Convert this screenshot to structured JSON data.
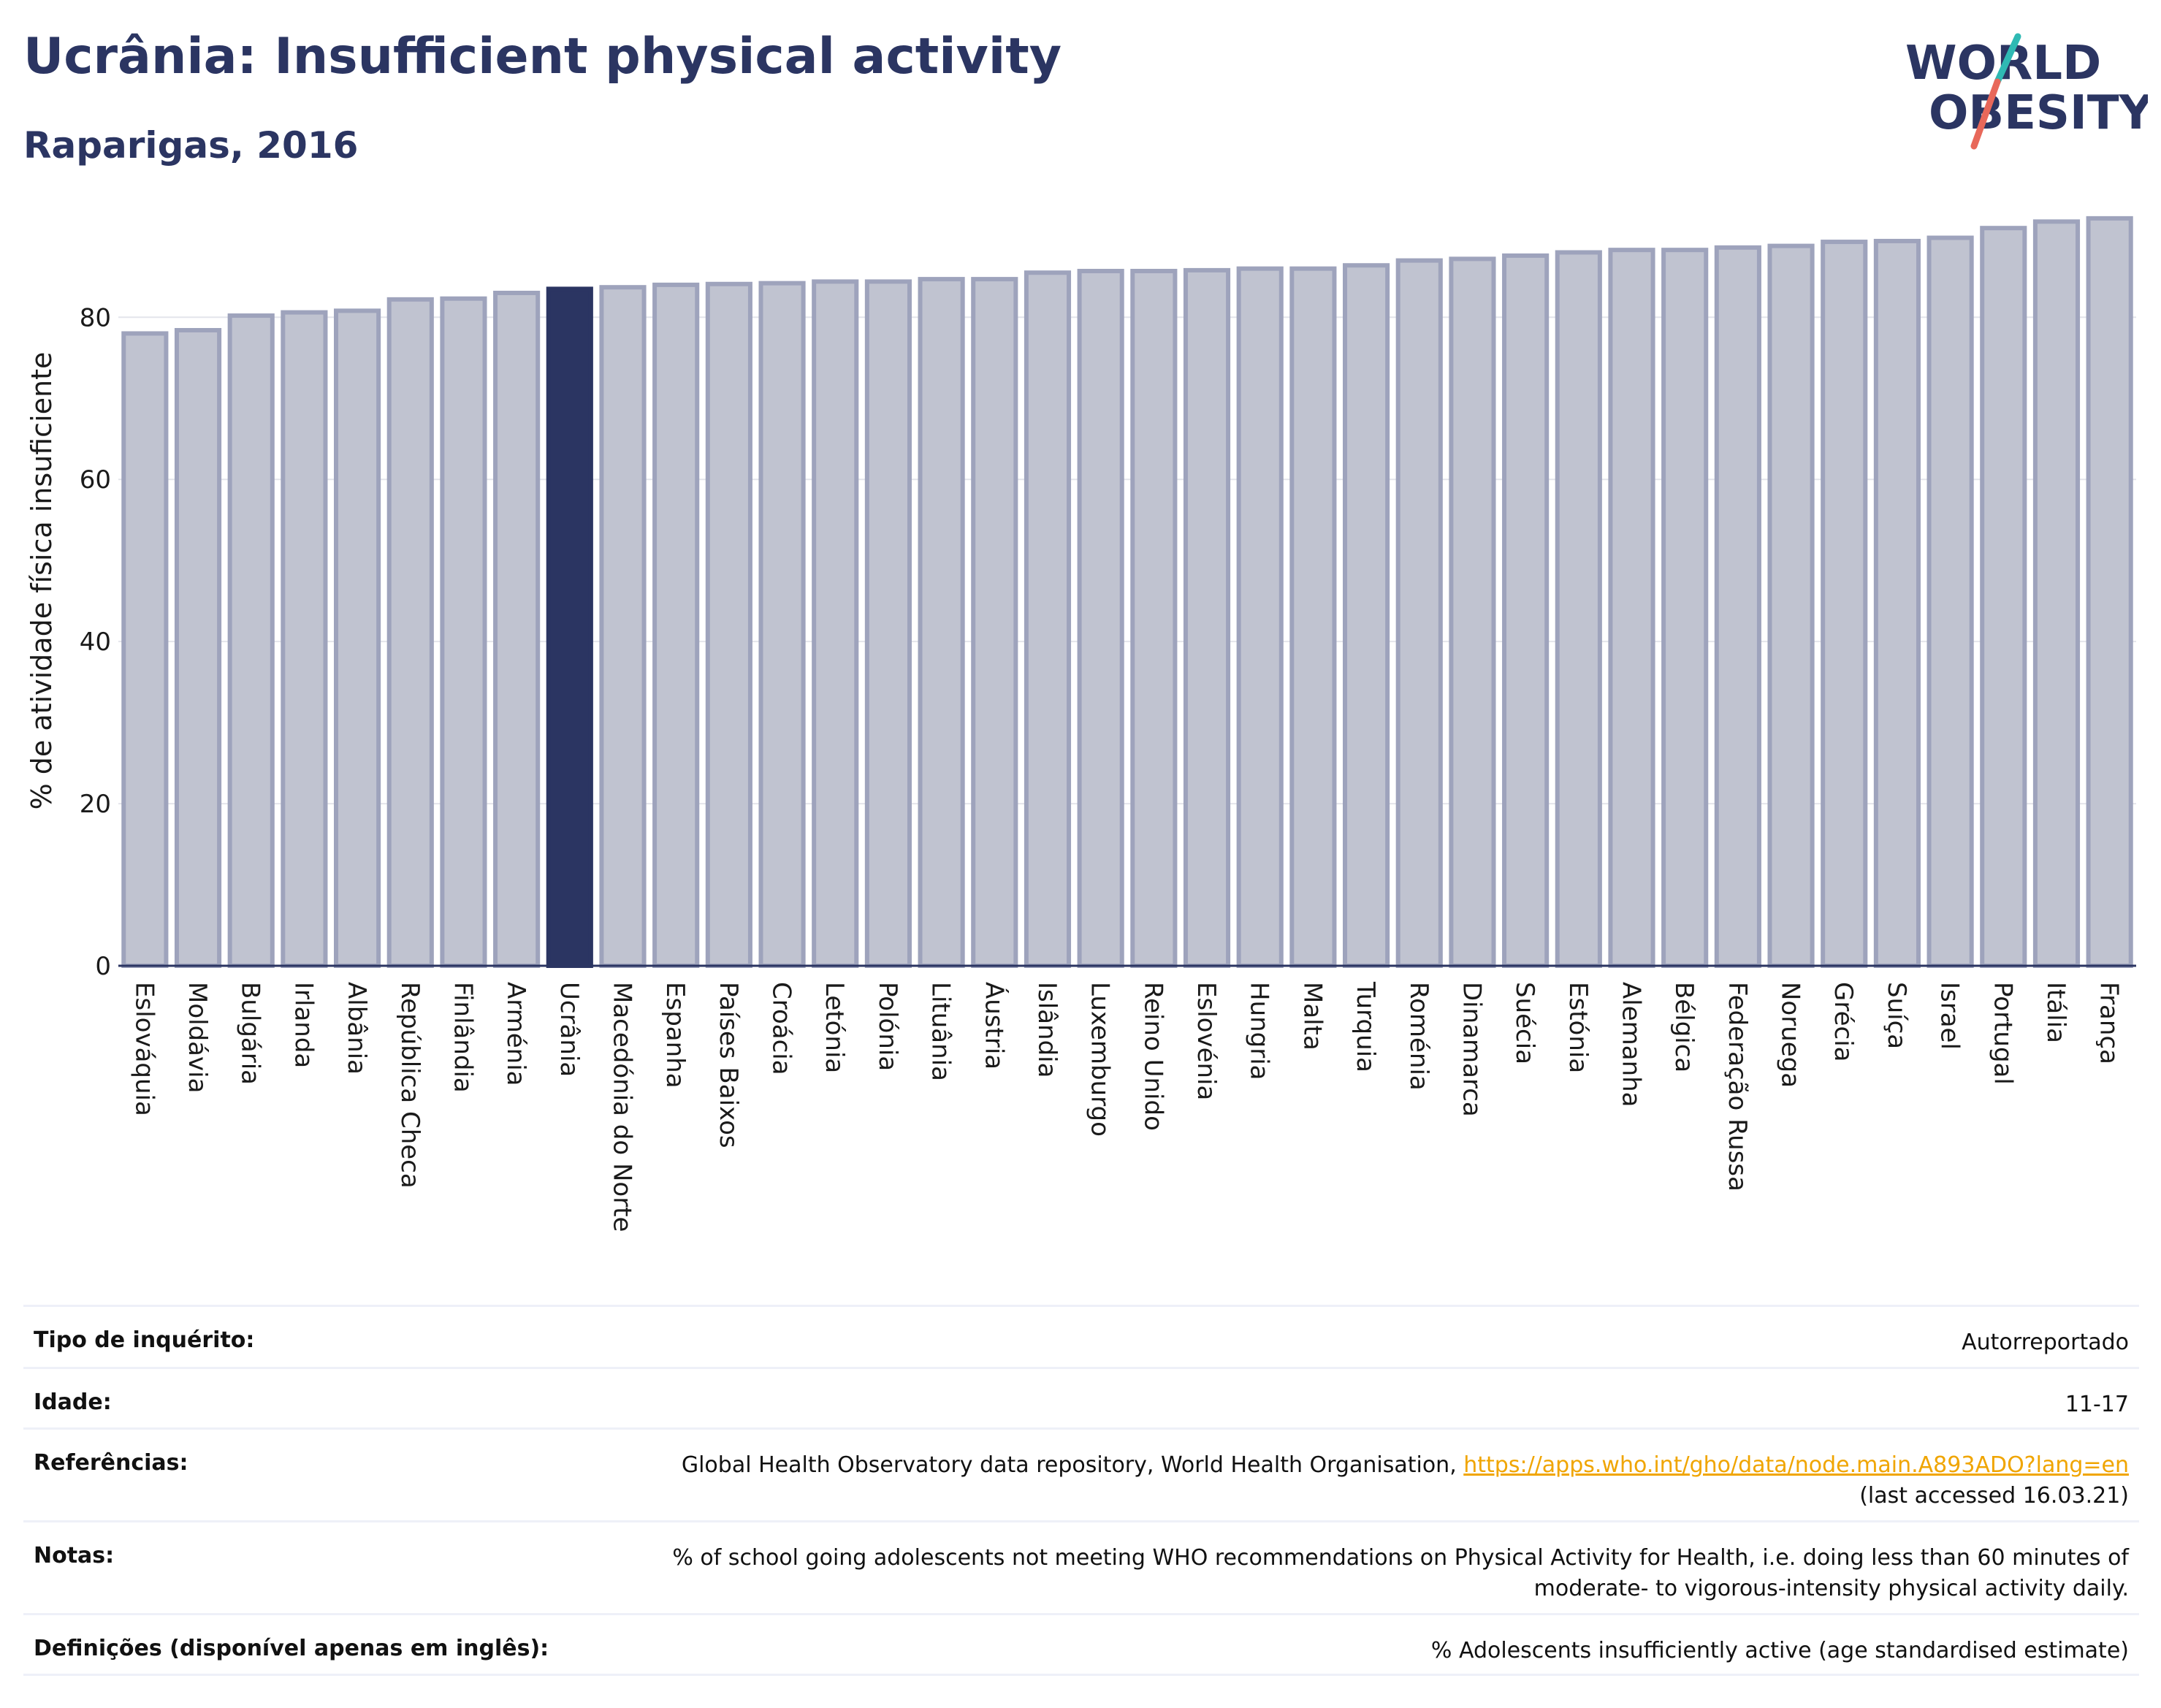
{
  "header": {
    "title": "Ucrânia: Insufficient physical activity",
    "subtitle": "Raparigas, 2016"
  },
  "logo": {
    "line1": "WORLD",
    "line2": "OBESITY",
    "colors": {
      "text": "#2b3562",
      "slash_teal": "#2fb9b3",
      "slash_coral": "#e8685a"
    }
  },
  "colors": {
    "bar_default": "#c0c3d0",
    "bar_default_border": "#9ea3bc",
    "bar_highlight": "#2b3562",
    "axis": "#2b3562",
    "grid": "#e4e5eb"
  },
  "chart_data": {
    "type": "bar",
    "title": "Ucrânia: Insufficient physical activity",
    "subtitle": "Raparigas, 2016",
    "xlabel": "",
    "ylabel": "% de atividade física insuficiente",
    "ylim": [
      0,
      93
    ],
    "yticks": [
      0,
      20,
      40,
      60,
      80
    ],
    "grid": true,
    "highlight": "Ucrânia",
    "categories": [
      "Eslováquia",
      "Moldávia",
      "Bulgária",
      "Irlanda",
      "Albânia",
      "República Checa",
      "Finlândia",
      "Arménia",
      "Ucrânia",
      "Macedónia do Norte",
      "Espanha",
      "Países Baixos",
      "Croácia",
      "Letónia",
      "Polónia",
      "Lituânia",
      "Áustria",
      "Islândia",
      "Luxemburgo",
      "Reino Unido",
      "Eslovénia",
      "Hungria",
      "Malta",
      "Turquia",
      "Roménia",
      "Dinamarca",
      "Suécia",
      "Estónia",
      "Alemanha",
      "Bélgica",
      "Federação Russa",
      "Noruega",
      "Grécia",
      "Suíça",
      "Israel",
      "Portugal",
      "Itália",
      "França"
    ],
    "values": [
      78.0,
      78.4,
      80.2,
      80.6,
      80.8,
      82.2,
      82.3,
      83.0,
      83.5,
      83.7,
      84.0,
      84.1,
      84.2,
      84.4,
      84.4,
      84.7,
      84.7,
      85.5,
      85.7,
      85.7,
      85.8,
      86.0,
      86.0,
      86.4,
      87.0,
      87.2,
      87.6,
      88.0,
      88.3,
      88.3,
      88.6,
      88.8,
      89.3,
      89.4,
      89.8,
      91.0,
      91.8,
      92.2
    ]
  },
  "meta": {
    "survey_label": "Tipo de inquérito:",
    "survey_value": "Autorreportado",
    "age_label": "Idade:",
    "age_value": "11-17",
    "refs_label": "Referências:",
    "refs_text": "Global Health Observatory data repository, World Health Organisation, ",
    "refs_link": "https://apps.who.int/gho/data/node.main.A893ADO?lang=en",
    "refs_accessed": "(last accessed 16.03.21)",
    "notes_label": "Notas:",
    "notes_line1": "% of school going adolescents not meeting WHO recommendations on Physical Activity for Health, i.e. doing less than 60 minutes of",
    "notes_line2": "moderate- to vigorous-intensity physical activity daily.",
    "defs_label": "Definições (disponível apenas em inglês):",
    "defs_value": "% Adolescents insufficiently active (age standardised estimate)"
  }
}
